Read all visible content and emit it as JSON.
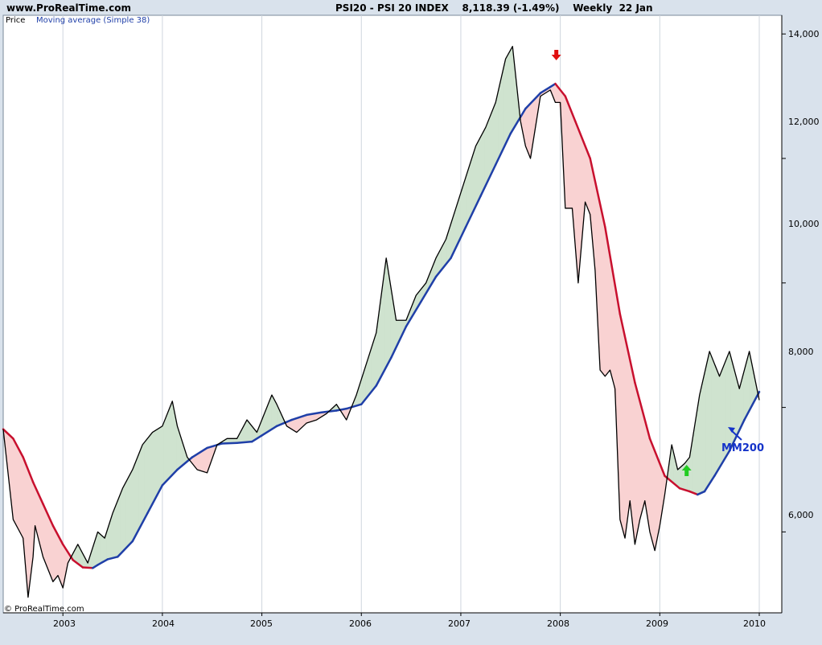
{
  "site": "www.ProRealTime.com",
  "header": "PSI20 - PSI 20 INDEX    8,118.39 (-1.49%)    Weekly  22 Jan",
  "legend": {
    "price": "Price",
    "ma": "Moving average (Simple 38)"
  },
  "copyright": "© ProRealTime.com",
  "annotation": "MM200",
  "colors": {
    "price": "#000000",
    "ma_rising": "#1f3fa8",
    "ma_falling": "#c8102e",
    "fill_above": "#cfe3cf",
    "fill_below": "#f9d2d2",
    "buy_arrow": "#22cc22",
    "sell_arrow": "#e01010"
  },
  "chart_data": {
    "type": "line",
    "title": "PSI20 - PSI 20 INDEX",
    "ylim": [
      4700,
      14300
    ],
    "y_ticks": [
      "6,000",
      "8,000",
      "10,000",
      "12,000",
      "14,000"
    ],
    "x_ticks": [
      "2003",
      "2004",
      "2005",
      "2006",
      "2007",
      "2008",
      "2009",
      "2010"
    ],
    "grid": true,
    "legend_position": "top-left",
    "series": [
      {
        "name": "Price",
        "x": [
          2002.4,
          2002.5,
          2002.6,
          2002.65,
          2002.7,
          2002.72,
          2002.8,
          2002.9,
          2002.95,
          2003.0,
          2003.05,
          2003.15,
          2003.25,
          2003.35,
          2003.42,
          2003.5,
          2003.6,
          2003.7,
          2003.8,
          2003.9,
          2004.0,
          2004.1,
          2004.15,
          2004.25,
          2004.35,
          2004.45,
          2004.55,
          2004.65,
          2004.75,
          2004.85,
          2004.95,
          2005.05,
          2005.1,
          2005.15,
          2005.25,
          2005.35,
          2005.45,
          2005.55,
          2005.65,
          2005.75,
          2005.85,
          2005.95,
          2006.05,
          2006.15,
          2006.25,
          2006.35,
          2006.45,
          2006.55,
          2006.65,
          2006.75,
          2006.85,
          2006.95,
          2007.05,
          2007.15,
          2007.25,
          2007.35,
          2007.45,
          2007.52,
          2007.6,
          2007.65,
          2007.7,
          2007.8,
          2007.9,
          2007.95,
          2008.0,
          2008.05,
          2008.12,
          2008.18,
          2008.25,
          2008.3,
          2008.35,
          2008.4,
          2008.45,
          2008.5,
          2008.55,
          2008.6,
          2008.65,
          2008.7,
          2008.75,
          2008.8,
          2008.85,
          2008.9,
          2008.95,
          2009.0,
          2009.05,
          2009.12,
          2009.18,
          2009.25,
          2009.3,
          2009.35,
          2009.4,
          2009.5,
          2009.6,
          2009.7,
          2009.8,
          2009.9,
          2010.0
        ],
        "y": [
          7650,
          6200,
          5900,
          4950,
          5600,
          6100,
          5600,
          5200,
          5300,
          5100,
          5500,
          5800,
          5500,
          6000,
          5900,
          6300,
          6700,
          7000,
          7400,
          7600,
          7700,
          8100,
          7700,
          7200,
          7000,
          6950,
          7400,
          7500,
          7500,
          7800,
          7600,
          8000,
          8200,
          8050,
          7700,
          7600,
          7750,
          7800,
          7900,
          8050,
          7800,
          8200,
          8700,
          9200,
          10400,
          9400,
          9400,
          9800,
          10000,
          10400,
          10700,
          11200,
          11700,
          12200,
          12500,
          12900,
          13600,
          13800,
          12600,
          12200,
          12000,
          13000,
          13100,
          12900,
          12900,
          11200,
          11200,
          10000,
          11300,
          11100,
          10200,
          8600,
          8500,
          8600,
          8300,
          6200,
          5900,
          6500,
          5800,
          6200,
          6500,
          6000,
          5700,
          6100,
          6600,
          7400,
          7000,
          7100,
          7200,
          7700,
          8200,
          8900,
          8500,
          8900,
          8300,
          8900,
          8118
        ]
      },
      {
        "name": "Moving average (Simple 38)",
        "x": [
          2002.4,
          2002.5,
          2002.6,
          2002.7,
          2002.8,
          2002.9,
          2003.0,
          2003.1,
          2003.2,
          2003.3,
          2003.35,
          2003.45,
          2003.55,
          2003.7,
          2003.85,
          2004.0,
          2004.15,
          2004.3,
          2004.45,
          2004.6,
          2004.75,
          2004.9,
          2005.0,
          2005.15,
          2005.3,
          2005.45,
          2005.6,
          2005.75,
          2005.85,
          2006.0,
          2006.15,
          2006.3,
          2006.45,
          2006.6,
          2006.75,
          2006.9,
          2007.05,
          2007.2,
          2007.35,
          2007.5,
          2007.65,
          2007.8,
          2007.9,
          2007.95,
          2008.05,
          2008.15,
          2008.3,
          2008.45,
          2008.6,
          2008.75,
          2008.9,
          2009.05,
          2009.2,
          2009.3,
          2009.38,
          2009.45,
          2009.55,
          2009.7,
          2009.85,
          2010.0
        ],
        "y": [
          7650,
          7500,
          7200,
          6800,
          6450,
          6100,
          5800,
          5550,
          5430,
          5420,
          5470,
          5560,
          5600,
          5850,
          6300,
          6750,
          7000,
          7200,
          7350,
          7420,
          7430,
          7450,
          7550,
          7700,
          7800,
          7880,
          7920,
          7950,
          7980,
          8050,
          8350,
          8800,
          9300,
          9700,
          10100,
          10400,
          10900,
          11400,
          11900,
          12400,
          12800,
          13050,
          13150,
          13200,
          13000,
          12600,
          12000,
          10900,
          9500,
          8400,
          7500,
          6900,
          6700,
          6650,
          6600,
          6650,
          6900,
          7300,
          7800,
          8250
        ]
      }
    ],
    "annotations": [
      {
        "text": "MM200"
      },
      {
        "type": "sell",
        "x": 2007.96
      },
      {
        "type": "buy",
        "x": 2009.27
      }
    ]
  }
}
